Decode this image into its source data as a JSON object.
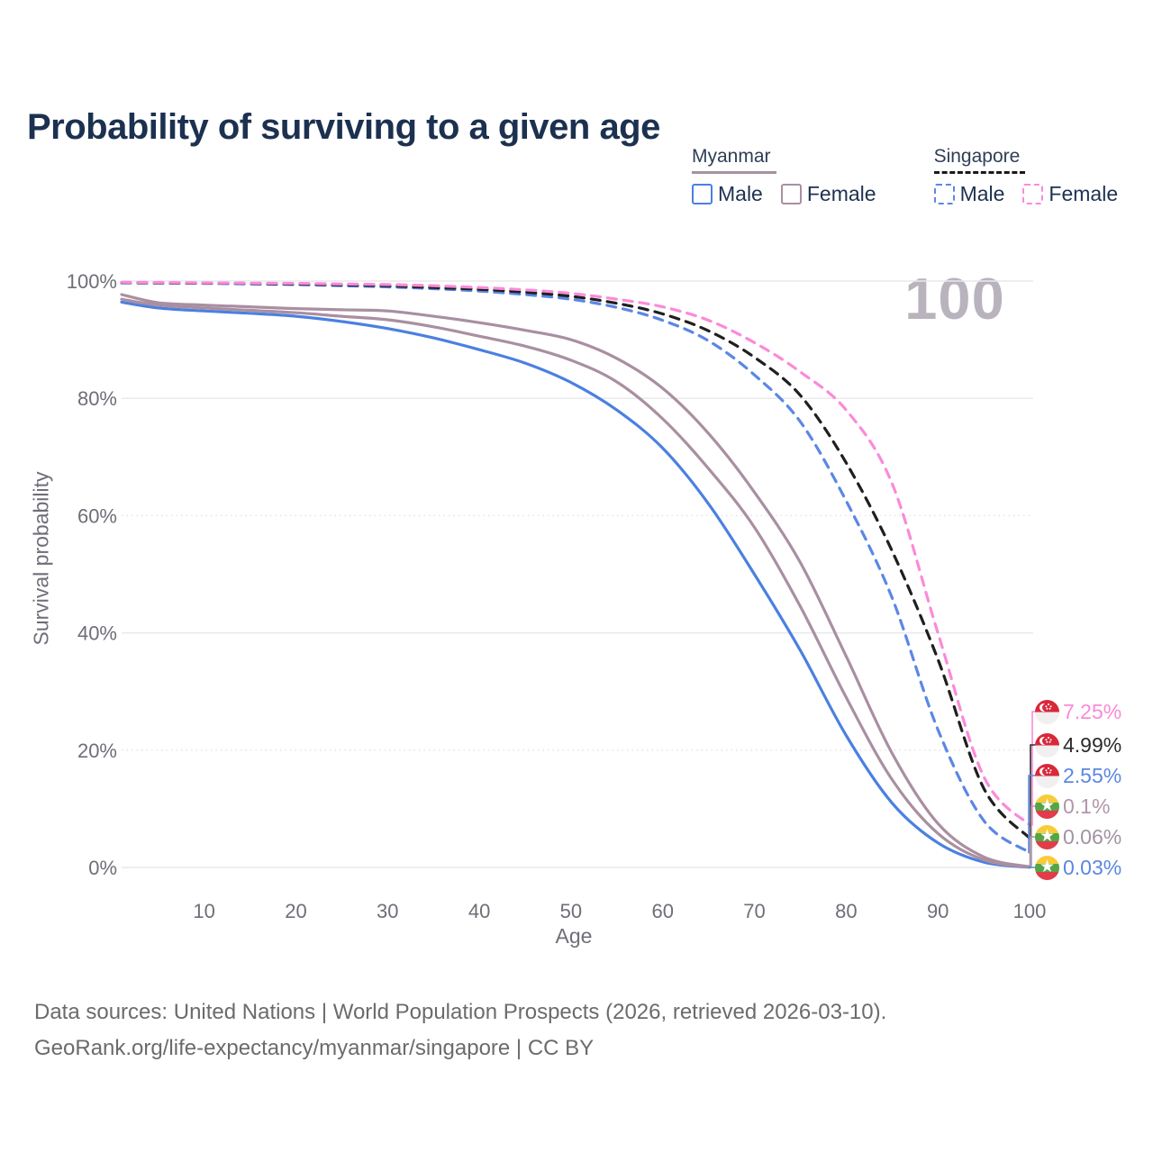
{
  "title": "Probability of surviving to a given age",
  "watermark": "100",
  "legend": {
    "groups": [
      {
        "label": "Myanmar",
        "line_style": "solid",
        "line_color": "#a9909f",
        "items": [
          {
            "label": "Male",
            "swatch_color": "#4b80e1",
            "swatch_style": "solid"
          },
          {
            "label": "Female",
            "swatch_color": "#a98fa1",
            "swatch_style": "solid"
          }
        ]
      },
      {
        "label": "Singapore",
        "line_style": "dashed",
        "line_color": "#1a1a1a",
        "items": [
          {
            "label": "Male",
            "swatch_color": "#5b87e5",
            "swatch_style": "dashed"
          },
          {
            "label": "Female",
            "swatch_color": "#fb8ad9",
            "swatch_style": "dashed"
          }
        ]
      }
    ]
  },
  "chart_data": {
    "type": "line",
    "title": "Probability of surviving to a given age",
    "xlabel": "Age",
    "ylabel": "Survival probability",
    "xlim": [
      1,
      100
    ],
    "ylim": [
      0,
      100
    ],
    "grid": "horizontal",
    "x_ticks": [
      10,
      20,
      30,
      40,
      50,
      60,
      70,
      80,
      90,
      100
    ],
    "y_ticks": [
      0,
      20,
      40,
      60,
      80,
      100
    ],
    "y_tick_suffix": "%",
    "x": [
      1,
      5,
      10,
      15,
      20,
      25,
      30,
      35,
      40,
      45,
      50,
      55,
      60,
      65,
      70,
      75,
      80,
      85,
      90,
      95,
      100
    ],
    "series": [
      {
        "name": "Myanmar Male",
        "country": "Myanmar",
        "sex": "Male",
        "style": "solid",
        "color": "#4b80e1",
        "end_value_label": "0.03%",
        "values": [
          96.4,
          95.4,
          94.9,
          94.5,
          94.0,
          93.1,
          91.9,
          90.3,
          88.3,
          86.0,
          82.7,
          78.0,
          71.5,
          62.0,
          50.0,
          37.0,
          22.5,
          11.0,
          4.2,
          0.9,
          0.03
        ]
      },
      {
        "name": "Myanmar Both sexes",
        "country": "Myanmar",
        "sex": "Both",
        "style": "solid",
        "color": "#a98fa1",
        "end_value_label": "0.06%",
        "values": [
          96.9,
          95.9,
          95.4,
          95.0,
          94.6,
          94.0,
          93.4,
          92.2,
          90.6,
          88.9,
          86.5,
          82.8,
          76.5,
          68.0,
          58.0,
          44.5,
          29.0,
          15.0,
          5.8,
          1.3,
          0.06
        ]
      },
      {
        "name": "Myanmar Female",
        "country": "Myanmar",
        "sex": "Female",
        "style": "solid",
        "color": "#a98fa1",
        "end_value_label": "0.1%",
        "values": [
          97.7,
          96.3,
          95.9,
          95.6,
          95.3,
          95.1,
          94.9,
          94.0,
          92.9,
          91.6,
          90.0,
          86.8,
          81.7,
          74.0,
          64.0,
          52.0,
          36.0,
          19.5,
          7.5,
          1.8,
          0.1
        ]
      },
      {
        "name": "Singapore Male",
        "country": "Singapore",
        "sex": "Male",
        "style": "dashed",
        "color": "#5b87e5",
        "end_value_label": "2.55%",
        "values": [
          99.7,
          99.65,
          99.6,
          99.5,
          99.4,
          99.2,
          99.0,
          98.7,
          98.3,
          97.7,
          96.9,
          95.5,
          93.3,
          89.8,
          84.0,
          76.0,
          62.5,
          46.0,
          23.5,
          8.0,
          2.55
        ]
      },
      {
        "name": "Singapore Both sexes",
        "country": "Singapore",
        "sex": "Both",
        "style": "dashed",
        "color": "#1f1f1f",
        "end_value_label": "4.99%",
        "values": [
          99.75,
          99.7,
          99.65,
          99.6,
          99.5,
          99.35,
          99.2,
          98.9,
          98.6,
          98.1,
          97.4,
          96.2,
          94.4,
          91.5,
          87.0,
          80.5,
          69.0,
          54.0,
          35.5,
          13.5,
          4.99
        ]
      },
      {
        "name": "Singapore Female",
        "country": "Singapore",
        "sex": "Female",
        "style": "dashed",
        "color": "#fb8ad9",
        "end_value_label": "7.25%",
        "values": [
          99.8,
          99.75,
          99.7,
          99.65,
          99.6,
          99.5,
          99.4,
          99.2,
          98.9,
          98.5,
          97.9,
          96.9,
          95.6,
          93.3,
          89.5,
          84.5,
          78.0,
          65.5,
          40.0,
          15.5,
          7.25
        ]
      }
    ]
  },
  "end_labels": [
    {
      "text": "7.25%",
      "flag": "singapore",
      "color": "#fb8ad9",
      "series": "Singapore Female"
    },
    {
      "text": "4.99%",
      "flag": "singapore",
      "color": "#2b2b2b",
      "series": "Singapore Both sexes"
    },
    {
      "text": "2.55%",
      "flag": "singapore",
      "color": "#5b87e0",
      "series": "Singapore Male"
    },
    {
      "text": "0.1%",
      "flag": "myanmar",
      "color": "#b295aa",
      "series": "Myanmar Female"
    },
    {
      "text": "0.06%",
      "flag": "myanmar",
      "color": "#a392a2",
      "series": "Myanmar Both sexes"
    },
    {
      "text": "0.03%",
      "flag": "myanmar",
      "color": "#5b87e0",
      "series": "Myanmar Male"
    }
  ],
  "footer": {
    "line1": "Data sources: United Nations | World Population Prospects (2026, retrieved 2026-03-10).",
    "line2": "GeoRank.org/life-expectancy/myanmar/singapore | CC BY"
  }
}
